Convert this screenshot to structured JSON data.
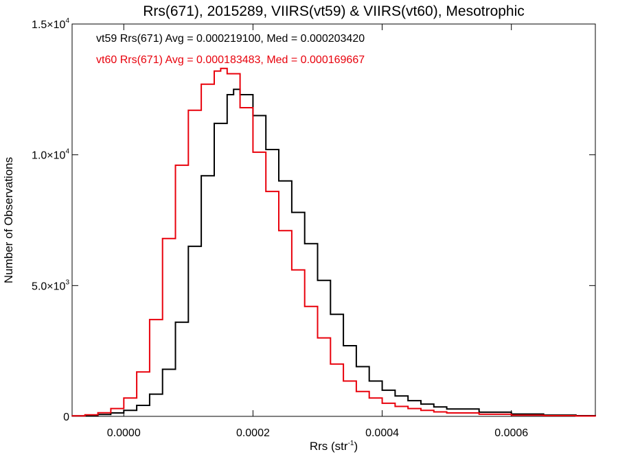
{
  "chart_data": {
    "type": "line",
    "title": "Rrs(671), 2015289, VIIRS(vt59) & VIIRS(vt60), Mesotrophic",
    "xlabel_main": "Rrs (str",
    "xlabel_sup": "-1",
    "xlabel_end": ")",
    "ylabel": "Number of Observations",
    "xlim": [
      -8e-05,
      0.00073
    ],
    "ylim": [
      0,
      15000
    ],
    "x_ticks": [
      {
        "value": 0.0,
        "label": "0.0000"
      },
      {
        "value": 0.0002,
        "label": "0.0002"
      },
      {
        "value": 0.0004,
        "label": "0.0004"
      },
      {
        "value": 0.0006,
        "label": "0.0006"
      }
    ],
    "y_ticks": [
      {
        "value": 0,
        "label": "0",
        "sup": ""
      },
      {
        "value": 5000,
        "label": "5.0×10",
        "sup": "3"
      },
      {
        "value": 10000,
        "label": "1.0×10",
        "sup": "4"
      },
      {
        "value": 15000,
        "label": "1.5×10",
        "sup": "4"
      }
    ],
    "annotations": [
      {
        "text": "vt59 Rrs(671) Avg = 0.000219100, Med = 0.000203420",
        "color": "#000000"
      },
      {
        "text": "vt60 Rrs(671) Avg = 0.000183483, Med = 0.000169667",
        "color": "#e8000b"
      }
    ],
    "series": [
      {
        "color": "#000000",
        "x": [
          -8e-05,
          -6e-05,
          -4e-05,
          -2e-05,
          0.0,
          2e-05,
          4e-05,
          6e-05,
          8e-05,
          0.0001,
          0.00012,
          0.00014,
          0.00016,
          0.00017,
          0.00018,
          0.0002,
          0.00022,
          0.00024,
          0.00026,
          0.00028,
          0.0003,
          0.00032,
          0.00034,
          0.00036,
          0.00038,
          0.0004,
          0.00042,
          0.00044,
          0.00046,
          0.00048,
          0.0005,
          0.00055,
          0.0006,
          0.00065,
          0.0007,
          0.00073
        ],
        "y": [
          20,
          40,
          70,
          130,
          230,
          420,
          850,
          1800,
          3600,
          6500,
          9200,
          11200,
          12300,
          12500,
          12300,
          11500,
          10200,
          9000,
          7800,
          6600,
          5200,
          3900,
          2700,
          1900,
          1350,
          1000,
          780,
          600,
          470,
          360,
          280,
          160,
          90,
          50,
          25,
          15
        ]
      },
      {
        "color": "#e8000b",
        "x": [
          -8e-05,
          -6e-05,
          -4e-05,
          -2e-05,
          0.0,
          2e-05,
          4e-05,
          6e-05,
          8e-05,
          0.0001,
          0.00012,
          0.00014,
          0.00015,
          0.00016,
          0.00018,
          0.0002,
          0.00022,
          0.00024,
          0.00026,
          0.00028,
          0.0003,
          0.00032,
          0.00034,
          0.00036,
          0.00038,
          0.0004,
          0.00042,
          0.00044,
          0.00046,
          0.00048,
          0.0005,
          0.00055,
          0.0006,
          0.00065,
          0.0007,
          0.00073
        ],
        "y": [
          20,
          60,
          140,
          300,
          700,
          1700,
          3700,
          6800,
          9600,
          11700,
          12700,
          13200,
          13300,
          13100,
          11800,
          10100,
          8600,
          7100,
          5600,
          4200,
          3000,
          2000,
          1350,
          950,
          700,
          500,
          380,
          300,
          230,
          170,
          130,
          80,
          45,
          25,
          12,
          8
        ]
      }
    ]
  }
}
